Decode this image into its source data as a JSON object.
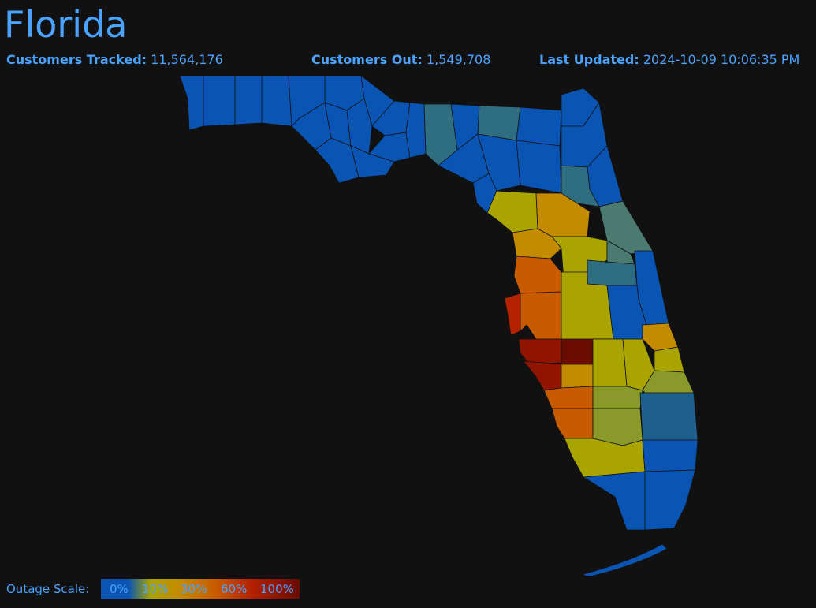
{
  "title": "Florida",
  "stats": {
    "tracked_label": "Customers Tracked:",
    "tracked_value": "11,564,176",
    "out_label": "Customers Out:",
    "out_value": "1,549,708",
    "updated_label": "Last Updated:",
    "updated_value": "2024-10-09 10:06:35 PM"
  },
  "legend": {
    "label": "Outage Scale:",
    "ticks": [
      "0%",
      "10%",
      "30%",
      "60%",
      "100%"
    ]
  },
  "colors": {
    "background": "#111111",
    "text": "#4aa3ff",
    "outage_0": "#0a55b4",
    "outage_low_teal": "#2f6e80",
    "outage_10": "#a9a400",
    "outage_30": "#c48a00",
    "outage_60": "#c85a00",
    "outage_high": "#b42000",
    "outage_100": "#6a0c00"
  }
}
